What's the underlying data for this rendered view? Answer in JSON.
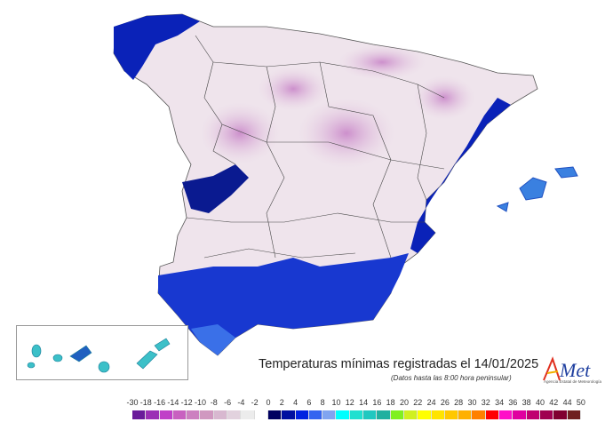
{
  "title": "Temperaturas mínimas registradas el 14/01/2025",
  "subtitle": "(Datos hasta las 8:00 hora peninsular)",
  "logo": {
    "text": "AEMet",
    "tagline": "Agencia Estatal de Meteorología"
  },
  "legend": {
    "labels": [
      "-30",
      "-18",
      "-16",
      "-14",
      "-12",
      "-10",
      "-8",
      "-6",
      "-4",
      "-2",
      "0",
      "2",
      "4",
      "6",
      "8",
      "10",
      "12",
      "14",
      "16",
      "18",
      "20",
      "22",
      "24",
      "26",
      "28",
      "30",
      "32",
      "34",
      "36",
      "38",
      "40",
      "42",
      "44",
      "50"
    ],
    "colors": [
      "#6a1b9a",
      "#9b2fb5",
      "#c040c8",
      "#c860c0",
      "#cc80c0",
      "#d098c0",
      "#d8b8d0",
      "#e2d2de",
      "#ececec",
      "#ffffff",
      "#000060",
      "#0010a0",
      "#0022e0",
      "#3464f0",
      "#80a4f0",
      "#00ffff",
      "#20e0d0",
      "#20c8c0",
      "#20b0a0",
      "#80f020",
      "#d0f020",
      "#ffff00",
      "#ffe400",
      "#ffc800",
      "#ffb000",
      "#ff8000",
      "#ff0000",
      "#ff10c8",
      "#e000a0",
      "#c00070",
      "#a00050",
      "#800030",
      "#702020"
    ]
  },
  "map_colors": {
    "land_cold": "#e6cfe2",
    "land_mid": "#f2eaf0",
    "frost": "#c890c8",
    "coast_cold": "#1030c0",
    "coast_warm": "#0818a0",
    "islands": "#3aa8d8",
    "borders": "#444444"
  }
}
